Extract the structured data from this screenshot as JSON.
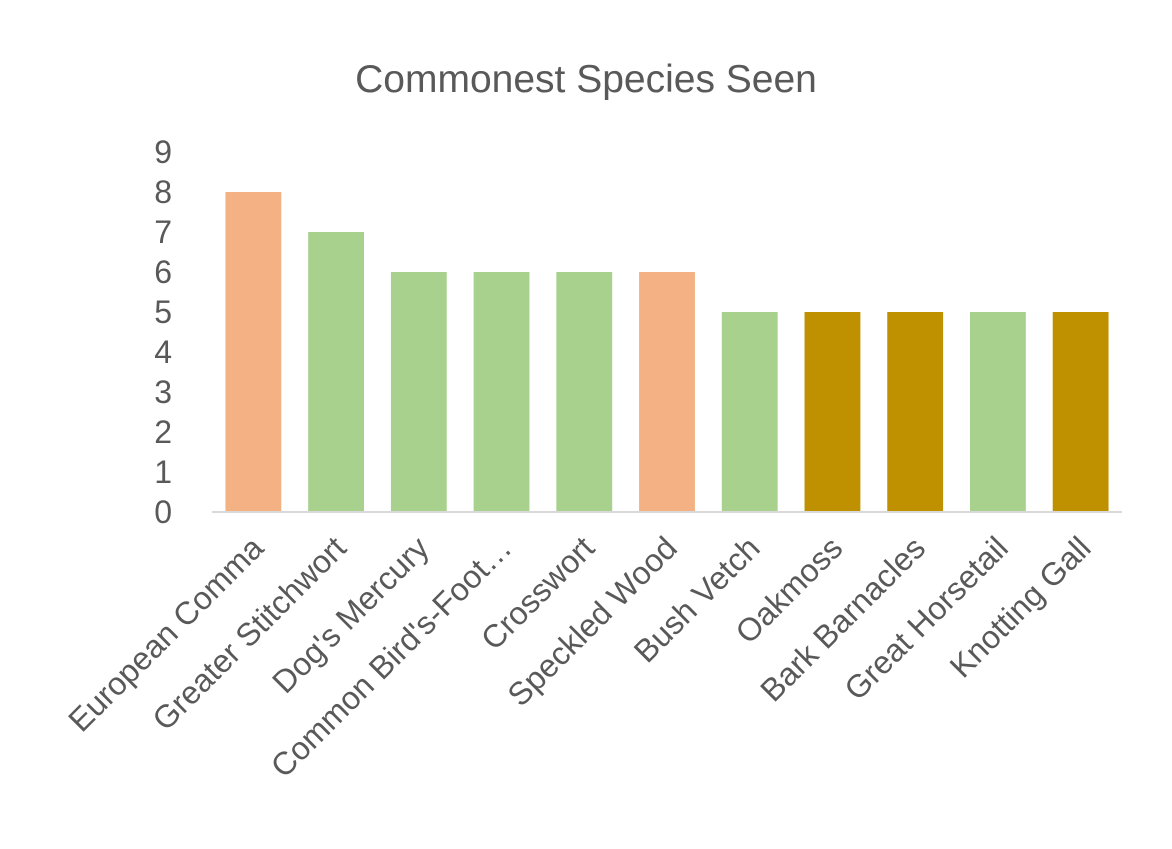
{
  "chart_data": {
    "type": "bar",
    "title": "Commonest Species Seen",
    "xlabel": "",
    "ylabel": "",
    "ylim": [
      0,
      9
    ],
    "yticks": [
      0,
      1,
      2,
      3,
      4,
      5,
      6,
      7,
      8,
      9
    ],
    "grid": false,
    "legend": "none",
    "categories": [
      "European Comma",
      "Greater Stitchwort",
      "Dog's Mercury",
      "Common Bird's-Foot…",
      "Crosswort",
      "Speckled Wood",
      "Bush Vetch",
      "Oakmoss",
      "Bark Barnacles",
      "Great Horsetail",
      "Knotting Gall"
    ],
    "values": [
      8,
      7,
      6,
      6,
      6,
      6,
      5,
      5,
      5,
      5,
      5
    ],
    "bar_colors": [
      "#f4b183",
      "#a9d18e",
      "#a9d18e",
      "#a9d18e",
      "#a9d18e",
      "#f4b183",
      "#a9d18e",
      "#bf9000",
      "#bf9000",
      "#a9d18e",
      "#bf9000"
    ],
    "axis_color": "#d9d9d9"
  }
}
